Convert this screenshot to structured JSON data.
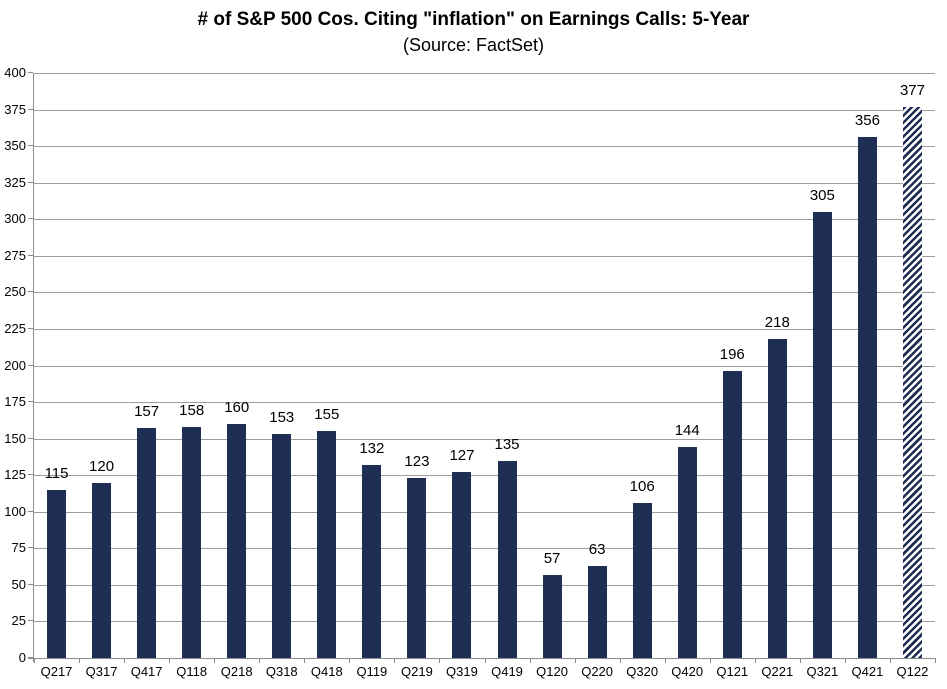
{
  "chart_data": {
    "type": "bar",
    "title": "# of S&P 500 Cos. Citing \"inflation\" on Earnings Calls: 5-Year",
    "subtitle": "(Source: FactSet)",
    "categories": [
      "Q217",
      "Q317",
      "Q417",
      "Q118",
      "Q218",
      "Q318",
      "Q418",
      "Q119",
      "Q219",
      "Q319",
      "Q419",
      "Q120",
      "Q220",
      "Q320",
      "Q420",
      "Q121",
      "Q221",
      "Q321",
      "Q421",
      "Q122"
    ],
    "values": [
      115,
      120,
      157,
      158,
      160,
      153,
      155,
      132,
      123,
      127,
      135,
      57,
      63,
      106,
      144,
      196,
      218,
      305,
      356,
      377
    ],
    "data_labels": true,
    "xlabel": "",
    "ylabel": "",
    "ylim": [
      0,
      400
    ],
    "ytick_step": 25,
    "grid": true,
    "legend": "none",
    "bar_color": "#1F2E54",
    "hatched_categories": [
      "Q122"
    ]
  },
  "colors": {
    "bar": "#1F2E54",
    "gridline": "#9e9e9e",
    "axis": "#8c8c8c",
    "text": "#000000",
    "background": "#ffffff"
  }
}
